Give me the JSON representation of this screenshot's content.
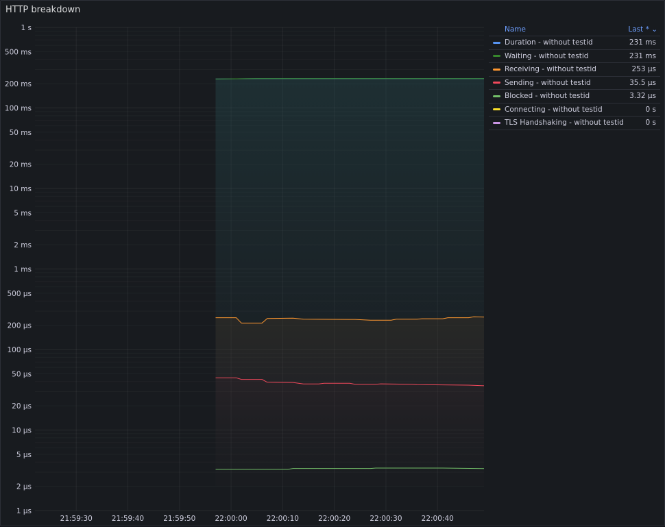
{
  "panel": {
    "title": "HTTP breakdown"
  },
  "legend": {
    "name_header": "Name",
    "last_header": "Last *",
    "sort_icon": "chevron-down-icon"
  },
  "chart_data": {
    "type": "line",
    "title": "HTTP breakdown",
    "y_scale": "log",
    "y_unit": "seconds",
    "ylim": [
      1e-06,
      1
    ],
    "y_ticks": [
      {
        "v": 1,
        "label": "1 s"
      },
      {
        "v": 0.5,
        "label": "500 ms"
      },
      {
        "v": 0.2,
        "label": "200 ms"
      },
      {
        "v": 0.1,
        "label": "100 ms"
      },
      {
        "v": 0.05,
        "label": "50 ms"
      },
      {
        "v": 0.02,
        "label": "20 ms"
      },
      {
        "v": 0.01,
        "label": "10 ms"
      },
      {
        "v": 0.005,
        "label": "5 ms"
      },
      {
        "v": 0.002,
        "label": "2 ms"
      },
      {
        "v": 0.001,
        "label": "1 ms"
      },
      {
        "v": 0.0005,
        "label": "500 µs"
      },
      {
        "v": 0.0002,
        "label": "200 µs"
      },
      {
        "v": 0.0001,
        "label": "100 µs"
      },
      {
        "v": 5e-05,
        "label": "50 µs"
      },
      {
        "v": 2e-05,
        "label": "20 µs"
      },
      {
        "v": 1e-05,
        "label": "10 µs"
      },
      {
        "v": 5e-06,
        "label": "5 µs"
      },
      {
        "v": 2e-06,
        "label": "2 µs"
      },
      {
        "v": 1e-06,
        "label": "1 µs"
      }
    ],
    "x_range": [
      "21:59:22",
      "22:00:49"
    ],
    "x_ticks": [
      "21:59:30",
      "21:59:40",
      "21:59:50",
      "22:00:00",
      "22:00:10",
      "22:00:20",
      "22:00:30",
      "22:00:40"
    ],
    "grid": true,
    "legend_position": "right",
    "series": [
      {
        "name": "Duration - without testid",
        "color": "#5794f2",
        "last": "231 ms",
        "x": [
          "21:59:57",
          "22:00:05",
          "22:00:49"
        ],
        "values": [
          0.229,
          0.231,
          0.231
        ]
      },
      {
        "name": "Waiting - without testid",
        "color": "#37872d",
        "last": "231 ms",
        "x": [
          "21:59:57",
          "22:00:05",
          "22:00:49"
        ],
        "values": [
          0.229,
          0.231,
          0.231
        ]
      },
      {
        "name": "Receiving - without testid",
        "color": "#ff9830",
        "last": "253 µs",
        "fill": true,
        "x": [
          "21:59:57",
          "22:00:01",
          "22:00:02",
          "22:00:06",
          "22:00:07",
          "22:00:12",
          "22:00:14",
          "22:00:24",
          "22:00:27",
          "22:00:31",
          "22:00:32",
          "22:00:36",
          "22:00:37",
          "22:00:41",
          "22:00:42",
          "22:00:46",
          "22:00:47",
          "22:00:49"
        ],
        "values": [
          0.000248,
          0.000248,
          0.000213,
          0.000213,
          0.000243,
          0.000245,
          0.000238,
          0.000236,
          0.000231,
          0.000231,
          0.000238,
          0.000238,
          0.000241,
          0.000241,
          0.000248,
          0.000248,
          0.000255,
          0.000253
        ]
      },
      {
        "name": "Sending - without testid",
        "color": "#f2495c",
        "last": "35.5 µs",
        "fill": true,
        "x": [
          "21:59:57",
          "22:00:01",
          "22:00:02",
          "22:00:06",
          "22:00:07",
          "22:00:12",
          "22:00:14",
          "22:00:17",
          "22:00:18",
          "22:00:23",
          "22:00:24",
          "22:00:28",
          "22:00:29",
          "22:00:35",
          "22:00:36",
          "22:00:41",
          "22:00:46",
          "22:00:49"
        ],
        "values": [
          4.45e-05,
          4.45e-05,
          4.25e-05,
          4.25e-05,
          3.92e-05,
          3.89e-05,
          3.74e-05,
          3.74e-05,
          3.81e-05,
          3.81e-05,
          3.7e-05,
          3.7e-05,
          3.74e-05,
          3.7e-05,
          3.66e-05,
          3.64e-05,
          3.61e-05,
          3.55e-05
        ]
      },
      {
        "name": "Blocked - without testid",
        "color": "#73bf69",
        "last": "3.32 µs",
        "x": [
          "21:59:57",
          "22:00:11",
          "22:00:12",
          "22:00:27",
          "22:00:28",
          "22:00:41",
          "22:00:49"
        ],
        "values": [
          3.25e-06,
          3.25e-06,
          3.33e-06,
          3.33e-06,
          3.37e-06,
          3.37e-06,
          3.32e-06
        ]
      },
      {
        "name": "Connecting - without testid",
        "color": "#fade2a",
        "last": "0 s",
        "x": [],
        "values": []
      },
      {
        "name": "TLS Handshaking - without testid",
        "color": "#ca95e5",
        "last": "0 s",
        "x": [],
        "values": []
      }
    ]
  }
}
